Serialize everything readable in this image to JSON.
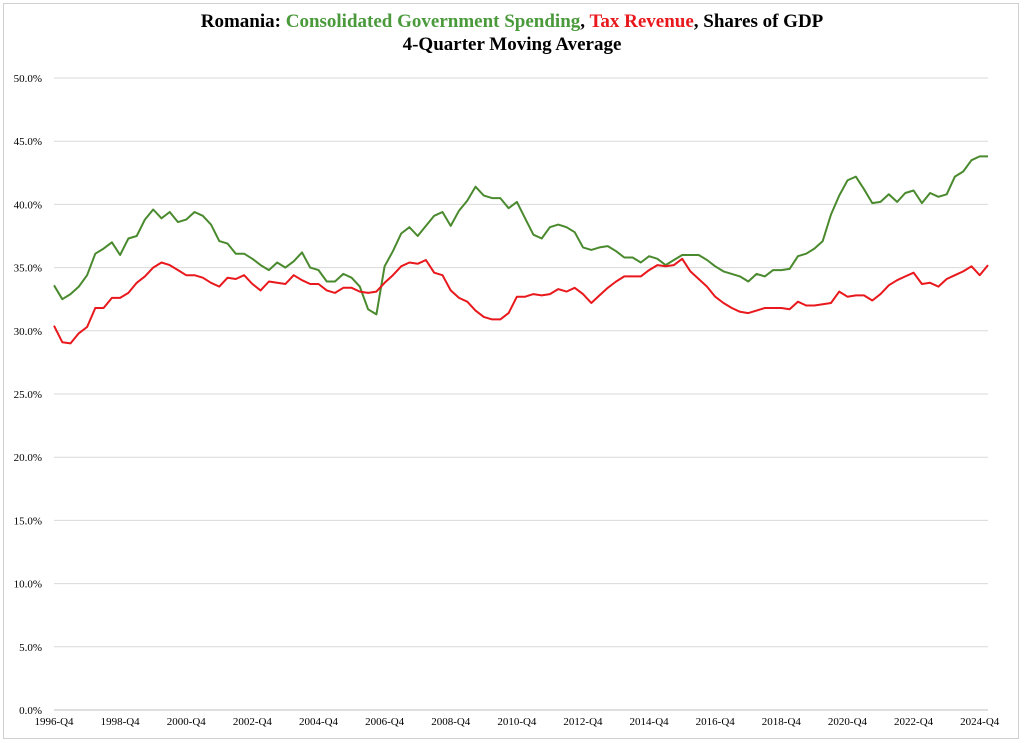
{
  "chart_data": {
    "type": "line",
    "title_parts": [
      {
        "text": "Romania: ",
        "color": "#000000"
      },
      {
        "text": "Consolidated Government Spending",
        "color": "#4a9a3c"
      },
      {
        "text": ", ",
        "color": "#000000"
      },
      {
        "text": "Tax Revenue",
        "color": "#e8181c"
      },
      {
        "text": ", Shares of GDP",
        "color": "#000000"
      }
    ],
    "subtitle": "4-Quarter Moving Average",
    "xlabel": "",
    "ylabel": "",
    "ylim": [
      0,
      50
    ],
    "y_ticks": [
      "0.0%",
      "5.0%",
      "10.0%",
      "15.0%",
      "20.0%",
      "25.0%",
      "30.0%",
      "35.0%",
      "40.0%",
      "45.0%",
      "50.0%"
    ],
    "x_ticks": [
      "1996-Q4",
      "1998-Q4",
      "2000-Q4",
      "2002-Q4",
      "2004-Q4",
      "2006-Q4",
      "2008-Q4",
      "2010-Q4",
      "2012-Q4",
      "2014-Q4",
      "2016-Q4",
      "2018-Q4",
      "2020-Q4",
      "2022-Q4",
      "2024-Q4"
    ],
    "x_start": "1996-Q4",
    "grid": true,
    "series": [
      {
        "name": "Consolidated Government Spending",
        "color": "#4a8a2e",
        "values": [
          33.6,
          32.5,
          32.9,
          33.5,
          34.4,
          36.1,
          36.5,
          37.0,
          36.0,
          37.3,
          37.5,
          38.8,
          39.6,
          38.9,
          39.4,
          38.6,
          38.8,
          39.4,
          39.1,
          38.4,
          37.1,
          36.9,
          36.1,
          36.1,
          35.7,
          35.2,
          34.8,
          35.4,
          35.0,
          35.5,
          36.2,
          35.0,
          34.8,
          33.9,
          33.9,
          34.5,
          34.2,
          33.5,
          31.7,
          31.3,
          35.1,
          36.3,
          37.7,
          38.2,
          37.5,
          38.3,
          39.1,
          39.4,
          38.3,
          39.5,
          40.3,
          41.4,
          40.7,
          40.5,
          40.5,
          39.7,
          40.2,
          38.9,
          37.6,
          37.3,
          38.2,
          38.4,
          38.2,
          37.8,
          36.6,
          36.4,
          36.6,
          36.7,
          36.3,
          35.8,
          35.8,
          35.4,
          35.9,
          35.7,
          35.2,
          35.6,
          36.0,
          36.0,
          36.0,
          35.6,
          35.1,
          34.7,
          34.5,
          34.3,
          33.9,
          34.5,
          34.3,
          34.8,
          34.8,
          34.9,
          35.9,
          36.1,
          36.5,
          37.1,
          39.2,
          40.7,
          41.9,
          42.2,
          41.2,
          40.1,
          40.2,
          40.8,
          40.2,
          40.9,
          41.1,
          40.1,
          40.9,
          40.6,
          40.8,
          42.2,
          42.6,
          43.5,
          43.8,
          43.8
        ]
      },
      {
        "name": "Tax Revenue",
        "color": "#e8181c",
        "values": [
          30.4,
          29.1,
          29.0,
          29.8,
          30.3,
          31.8,
          31.8,
          32.6,
          32.6,
          33.0,
          33.8,
          34.3,
          35.0,
          35.4,
          35.2,
          34.8,
          34.4,
          34.4,
          34.2,
          33.8,
          33.5,
          34.2,
          34.1,
          34.4,
          33.7,
          33.2,
          33.9,
          33.8,
          33.7,
          34.4,
          34.0,
          33.7,
          33.7,
          33.2,
          33.0,
          33.4,
          33.4,
          33.1,
          33.0,
          33.1,
          33.8,
          34.4,
          35.1,
          35.4,
          35.3,
          35.6,
          34.6,
          34.4,
          33.2,
          32.6,
          32.3,
          31.6,
          31.1,
          30.9,
          30.9,
          31.4,
          32.7,
          32.7,
          32.9,
          32.8,
          32.9,
          33.3,
          33.1,
          33.4,
          32.9,
          32.2,
          32.8,
          33.4,
          33.9,
          34.3,
          34.3,
          34.3,
          34.8,
          35.2,
          35.1,
          35.2,
          35.7,
          34.7,
          34.1,
          33.5,
          32.7,
          32.2,
          31.8,
          31.5,
          31.4,
          31.6,
          31.8,
          31.8,
          31.8,
          31.7,
          32.3,
          32.0,
          32.0,
          32.1,
          32.2,
          33.1,
          32.7,
          32.8,
          32.8,
          32.4,
          32.9,
          33.6,
          34.0,
          34.3,
          34.6,
          33.7,
          33.8,
          33.5,
          34.1,
          34.4,
          34.7,
          35.1,
          34.4,
          35.2
        ]
      }
    ]
  }
}
